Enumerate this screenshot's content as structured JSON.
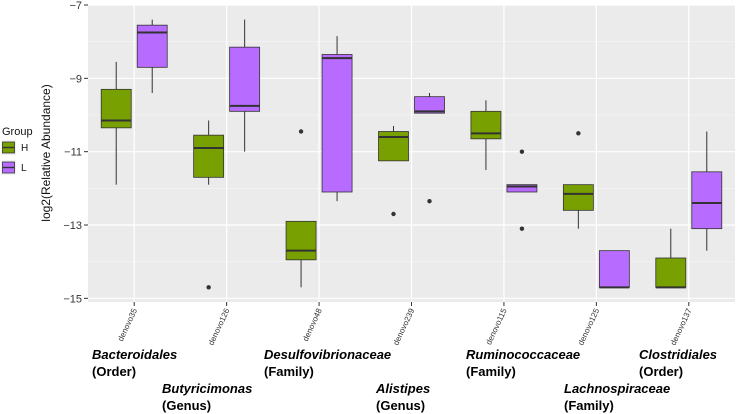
{
  "chart_data": {
    "type": "boxplot",
    "ylabel": "log2(Relative Abundance)",
    "ylim": [
      -15.1,
      -7
    ],
    "yticks": [
      -15,
      -13,
      -11,
      -9,
      -7
    ],
    "categories": [
      "denovo35",
      "denovo126",
      "denovo48",
      "denovo239",
      "denovo115",
      "denovo125",
      "denovo137"
    ],
    "legend": {
      "title": "Group",
      "position": "left"
    },
    "grid": true,
    "series": [
      {
        "name": "H",
        "color": "#77a000",
        "boxes": [
          {
            "whisker_low": -11.9,
            "q1": -10.35,
            "median": -10.15,
            "q3": -9.3,
            "whisker_high": -8.55,
            "outliers": []
          },
          {
            "whisker_low": -11.9,
            "q1": -11.7,
            "median": -10.9,
            "q3": -10.55,
            "whisker_high": -10.15,
            "outliers": [
              -14.7
            ]
          },
          {
            "whisker_low": -14.7,
            "q1": -13.95,
            "median": -13.7,
            "q3": -12.9,
            "whisker_high": -12.9,
            "outliers": [
              -10.45
            ]
          },
          {
            "whisker_low": -11.25,
            "q1": -11.25,
            "median": -10.6,
            "q3": -10.45,
            "whisker_high": -10.3,
            "outliers": [
              -12.7
            ]
          },
          {
            "whisker_low": -11.5,
            "q1": -10.65,
            "median": -10.5,
            "q3": -9.9,
            "whisker_high": -9.6,
            "outliers": []
          },
          {
            "whisker_low": -13.1,
            "q1": -12.6,
            "median": -12.15,
            "q3": -11.9,
            "whisker_high": -11.9,
            "outliers": [
              -10.5
            ]
          },
          {
            "whisker_low": -14.7,
            "q1": -14.7,
            "median": -14.7,
            "q3": -13.9,
            "whisker_high": -13.1,
            "outliers": []
          }
        ]
      },
      {
        "name": "L",
        "color": "#b86bff",
        "boxes": [
          {
            "whisker_low": -9.4,
            "q1": -8.7,
            "median": -7.75,
            "q3": -7.55,
            "whisker_high": -7.4,
            "outliers": []
          },
          {
            "whisker_low": -11.0,
            "q1": -9.9,
            "median": -9.75,
            "q3": -8.15,
            "whisker_high": -7.4,
            "outliers": []
          },
          {
            "whisker_low": -12.35,
            "q1": -12.1,
            "median": -8.45,
            "q3": -8.35,
            "whisker_high": -7.85,
            "outliers": []
          },
          {
            "whisker_low": -9.95,
            "q1": -9.95,
            "median": -9.9,
            "q3": -9.5,
            "whisker_high": -9.4,
            "outliers": [
              -12.35
            ]
          },
          {
            "whisker_low": -12.1,
            "q1": -12.1,
            "median": -11.95,
            "q3": -11.9,
            "whisker_high": -11.9,
            "outliers": [
              -11.0,
              -13.1
            ]
          },
          {
            "whisker_low": -14.7,
            "q1": -14.7,
            "median": -14.7,
            "q3": -13.7,
            "whisker_high": -13.7,
            "outliers": []
          },
          {
            "whisker_low": -13.7,
            "q1": -13.1,
            "median": -12.4,
            "q3": -11.55,
            "whisker_high": -10.45,
            "outliers": []
          }
        ]
      }
    ]
  },
  "annotations": [
    {
      "name": "Bacteroidales",
      "rank": "(Order)"
    },
    {
      "name": "Butyricimonas",
      "rank": "(Genus)"
    },
    {
      "name": "Desulfovibrionaceae",
      "rank": "(Family)"
    },
    {
      "name": "Alistipes",
      "rank": "(Genus)"
    },
    {
      "name": "Ruminococcaceae",
      "rank": "(Family)"
    },
    {
      "name": "Lachnospiraceae",
      "rank": "(Family)"
    },
    {
      "name": "Clostridiales",
      "rank": "(Order)"
    }
  ]
}
